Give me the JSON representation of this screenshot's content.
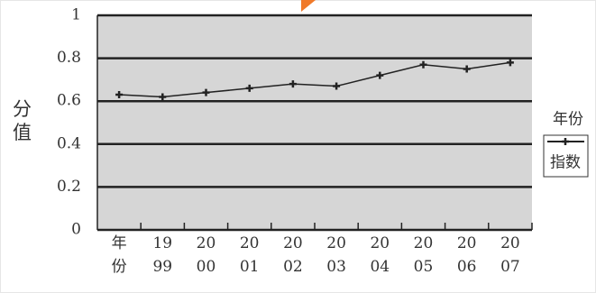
{
  "chart_data": {
    "type": "line",
    "y_label": "分值",
    "categories": [
      "年份",
      "1999",
      "2000",
      "2001",
      "2002",
      "2003",
      "2004",
      "2005",
      "2006",
      "2007"
    ],
    "series": [
      {
        "name": "指数",
        "color": "#222222",
        "values": [
          0.63,
          0.62,
          0.64,
          0.66,
          0.68,
          0.67,
          0.72,
          0.77,
          0.75,
          0.78
        ]
      }
    ],
    "legend_title": "年份",
    "ylim": [
      0,
      1
    ],
    "yticks": [
      0,
      0.2,
      0.4,
      0.6,
      0.8,
      1
    ],
    "grid": true,
    "plot_background": "#d6d6d6"
  }
}
